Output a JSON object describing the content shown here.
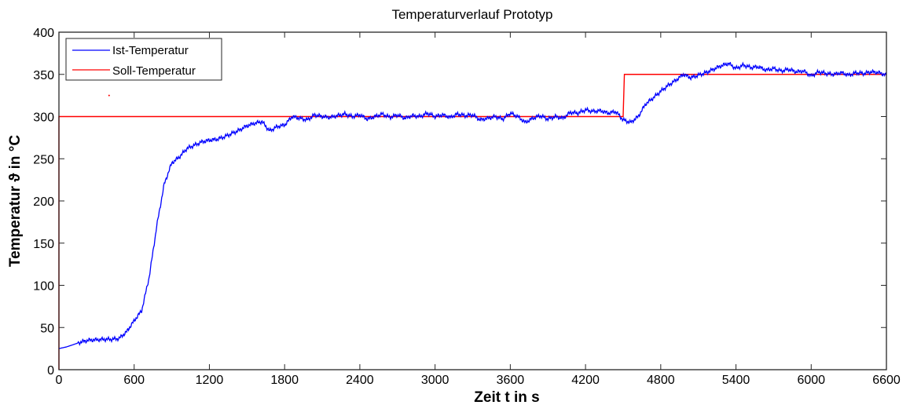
{
  "chart_data": {
    "type": "line",
    "title": "Temperaturverlauf Prototyp",
    "xlabel": "Zeit t in s",
    "ylabel": "Temperatur ϑ in °C",
    "xlim": [
      0,
      6600
    ],
    "ylim": [
      0,
      400
    ],
    "xticks": [
      "0",
      "600",
      "1200",
      "1800",
      "2400",
      "3000",
      "3600",
      "4200",
      "4800",
      "5400",
      "6000",
      "6600"
    ],
    "yticks": [
      "0",
      "50",
      "100",
      "150",
      "200",
      "250",
      "300",
      "350",
      "400"
    ],
    "grid": false,
    "legend_position": "top-left",
    "series": [
      {
        "name": "Ist-Temperatur",
        "color": "#0000ff",
        "x": [
          0,
          60,
          120,
          180,
          240,
          300,
          360,
          420,
          480,
          540,
          600,
          660,
          720,
          780,
          840,
          900,
          960,
          1020,
          1080,
          1140,
          1200,
          1260,
          1320,
          1380,
          1440,
          1500,
          1560,
          1620,
          1680,
          1740,
          1800,
          1860,
          1920,
          1980,
          2040,
          2100,
          2160,
          2220,
          2280,
          2340,
          2400,
          2460,
          2520,
          2580,
          2640,
          2700,
          2760,
          2820,
          2880,
          2940,
          3000,
          3060,
          3120,
          3180,
          3240,
          3300,
          3360,
          3420,
          3480,
          3540,
          3600,
          3660,
          3720,
          3780,
          3840,
          3900,
          3960,
          4020,
          4080,
          4140,
          4200,
          4260,
          4320,
          4380,
          4440,
          4500,
          4560,
          4620,
          4680,
          4740,
          4800,
          4860,
          4920,
          4980,
          5040,
          5100,
          5160,
          5220,
          5280,
          5340,
          5400,
          5460,
          5520,
          5580,
          5640,
          5700,
          5760,
          5820,
          5880,
          5940,
          6000,
          6060,
          6120,
          6180,
          6240,
          6300,
          6360,
          6420,
          6480,
          6540,
          6600
        ],
        "y": [
          25,
          27,
          30,
          33,
          35,
          35.5,
          36,
          36,
          37,
          45,
          58,
          70,
          110,
          170,
          220,
          245,
          252,
          262,
          266,
          270,
          272,
          273,
          276,
          280,
          284,
          289,
          292,
          294,
          283,
          288,
          290,
          300,
          298,
          296,
          302,
          300,
          299,
          301,
          303,
          300,
          302,
          297,
          300,
          303,
          299,
          302,
          298,
          301,
          300,
          304,
          300,
          302,
          299,
          303,
          301,
          302,
          296,
          298,
          300,
          297,
          304,
          300,
          293,
          298,
          301,
          297,
          300,
          298,
          305,
          304,
          308,
          306,
          307,
          304,
          306,
          296,
          293,
          300,
          315,
          322,
          330,
          337,
          343,
          350,
          346,
          349,
          352,
          356,
          360,
          363,
          357,
          361,
          358,
          359,
          355,
          357,
          354,
          356,
          353,
          354,
          348,
          353,
          351,
          350,
          352,
          349,
          352,
          351,
          353,
          352,
          349
        ]
      },
      {
        "name": "Soll-Temperatur",
        "color": "#ff0000",
        "x": [
          0,
          0,
          4500,
          4510,
          6600
        ],
        "y": [
          0,
          300,
          300,
          350,
          350
        ]
      }
    ],
    "annotations": [
      {
        "type": "stray-point",
        "x": 400,
        "y": 325,
        "color": "#ff0000"
      }
    ]
  }
}
